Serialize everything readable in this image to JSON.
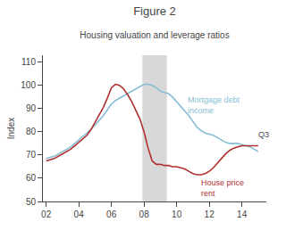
{
  "chart_data": {
    "type": "line",
    "title": "Figure 2",
    "subtitle": "Housing valuation and leverage ratios",
    "ylabel": "Index",
    "x": [
      2.0,
      2.25,
      2.5,
      2.75,
      3.0,
      3.25,
      3.5,
      3.75,
      4.0,
      4.25,
      4.5,
      4.75,
      5.0,
      5.25,
      5.5,
      5.75,
      6.0,
      6.25,
      6.5,
      6.75,
      7.0,
      7.25,
      7.5,
      7.75,
      8.0,
      8.25,
      8.5,
      8.75,
      9.0,
      9.25,
      9.5,
      9.75,
      10.0,
      10.25,
      10.5,
      10.75,
      11.0,
      11.25,
      11.5,
      11.75,
      12.0,
      12.25,
      12.5,
      12.75,
      13.0,
      13.25,
      13.5,
      13.75,
      14.0,
      14.25,
      14.5,
      14.75,
      15.0
    ],
    "series": [
      {
        "name": "Mortgage debt\nincome",
        "color": "#85bdd4",
        "values": [
          68.5,
          69.0,
          69.5,
          70.5,
          71.5,
          72.5,
          73.5,
          75.0,
          76.5,
          78.0,
          79.5,
          81.0,
          83.0,
          85.0,
          87.0,
          89.5,
          92.0,
          93.5,
          94.5,
          95.5,
          96.5,
          97.5,
          98.5,
          99.5,
          100.5,
          100.5,
          100.0,
          99.0,
          97.5,
          97.0,
          96.5,
          95.0,
          93.0,
          91.0,
          89.0,
          87.0,
          84.5,
          82.0,
          80.5,
          79.5,
          79.0,
          78.5,
          77.5,
          76.5,
          75.5,
          75.0,
          75.0,
          75.0,
          74.5,
          74.0,
          73.5,
          72.5,
          71.5
        ]
      },
      {
        "name": "House price\nrent",
        "color": "#b03030",
        "values": [
          67.5,
          68.0,
          68.5,
          69.5,
          70.5,
          71.5,
          72.5,
          74.0,
          75.5,
          77.0,
          78.5,
          81.0,
          84.0,
          87.0,
          90.5,
          94.5,
          99.0,
          100.5,
          100.0,
          98.5,
          96.0,
          93.0,
          89.5,
          85.5,
          80.0,
          73.0,
          67.5,
          66.0,
          66.0,
          65.5,
          65.5,
          65.0,
          65.0,
          64.5,
          64.0,
          63.0,
          62.0,
          61.5,
          61.5,
          62.0,
          63.0,
          64.5,
          66.5,
          68.5,
          70.5,
          72.0,
          73.0,
          73.5,
          74.0,
          74.0,
          74.0,
          74.0,
          74.0
        ]
      }
    ],
    "shaded_x": [
      7.9,
      9.4
    ],
    "annotations": [
      "Q3"
    ],
    "xlim": [
      1.8,
      15.5
    ],
    "xticks": [
      {
        "value": 2,
        "label": "02"
      },
      {
        "value": 4,
        "label": "04"
      },
      {
        "value": 6,
        "label": "06"
      },
      {
        "value": 8,
        "label": "08"
      },
      {
        "value": 10,
        "label": "10"
      },
      {
        "value": 12,
        "label": "12"
      },
      {
        "value": 14,
        "label": "14"
      }
    ],
    "ylim": [
      50,
      113
    ],
    "yticks": [
      50,
      60,
      70,
      80,
      90,
      100,
      110
    ],
    "grid": false
  }
}
